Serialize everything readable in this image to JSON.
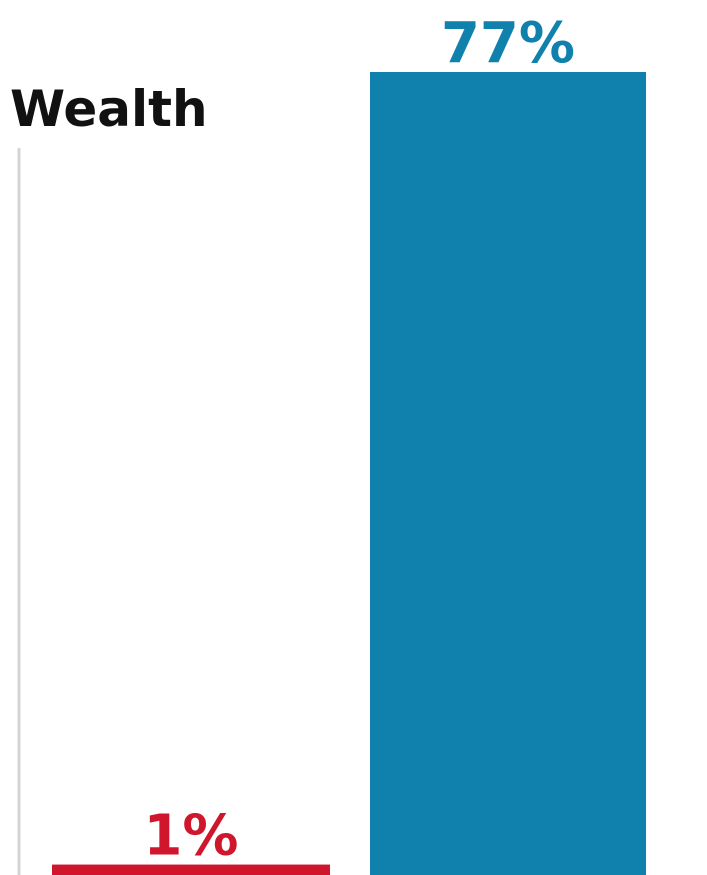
{
  "chart_data": {
    "type": "bar",
    "title": "Wealth",
    "categories": [
      "",
      ""
    ],
    "values": [
      1,
      77
    ],
    "value_labels": [
      "1%",
      "77%"
    ],
    "colors": [
      "#d0162d",
      "#1080ad"
    ],
    "ylim": [
      0,
      77
    ],
    "xlabel": "",
    "ylabel": "",
    "grid": false,
    "legend": "none"
  }
}
